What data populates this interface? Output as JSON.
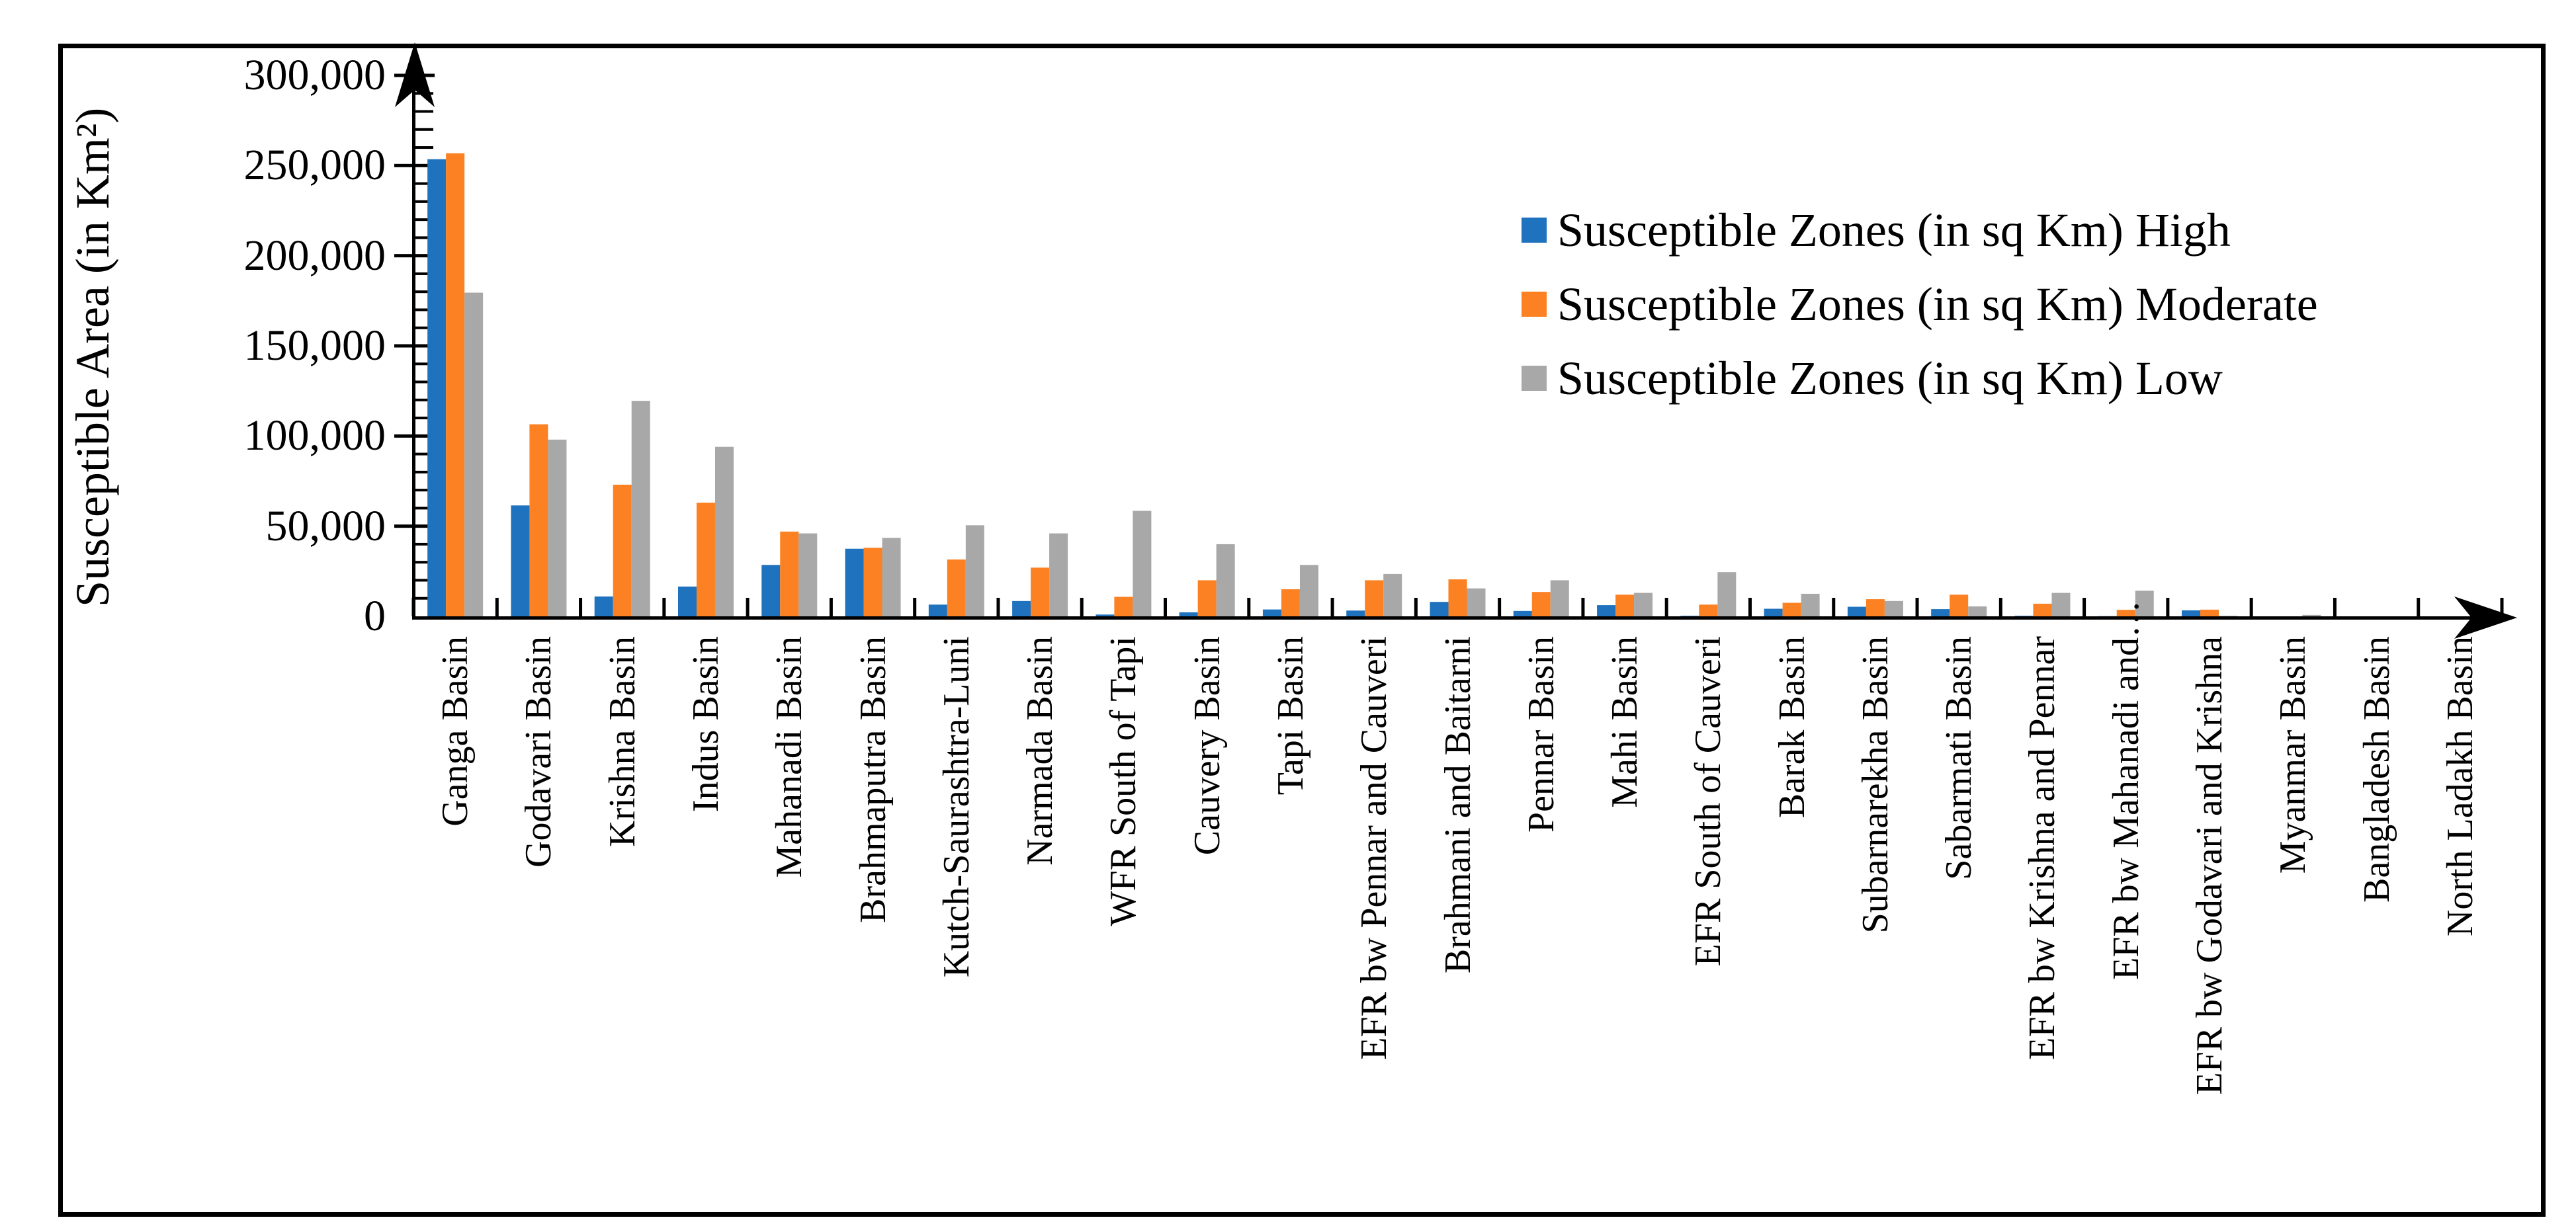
{
  "chart_data": {
    "type": "bar",
    "title": "",
    "ylabel": "Susceptible Area (in Km²)",
    "xlabel": "",
    "ylim": [
      0,
      300000
    ],
    "ytick_major_step": 50000,
    "ytick_minor_step": 10000,
    "ytick_labels": [
      "0",
      "50,000",
      "100,000",
      "150,000",
      "200,000",
      "250,000",
      "300,000"
    ],
    "grid": false,
    "legend_position": "upper-right-inside",
    "axis_color": "#000000",
    "categories": [
      "Ganga Basin",
      "Godavari Basin",
      "Krishna Basin",
      "Indus Basin",
      "Mahanadi Basin",
      "Brahmaputra Basin",
      "Kutch-Saurashtra-Luni",
      "Narmada Basin",
      "WFR South of Tapi",
      "Cauvery Basin",
      "Tapi Basin",
      "EFR bw Pennar and Cauveri",
      "Brahmani and Baitarni",
      "Pennar Basin",
      "Mahi Basin",
      "EFR South of Cauveri",
      "Barak Basin",
      "Subarnarekha Basin",
      "Sabarmati Basin",
      "EFR bw Krishna and Pennar",
      "EFR bw Mahanadi and…",
      "EFR bw Godavari and Krishna",
      "Myanmar Basin",
      "Bangladesh Basin",
      "North Ladakh Basin"
    ],
    "series": [
      {
        "name": "High",
        "legend_label": "Susceptible Zones (in sq Km) High",
        "color": "#1F72BE",
        "values": [
          253500,
          61500,
          11000,
          16500,
          28500,
          37500,
          6500,
          8500,
          1000,
          2200,
          3800,
          3200,
          8000,
          3000,
          6200,
          300,
          4200,
          5300,
          4000,
          300,
          100,
          3300,
          0,
          0,
          0
        ]
      },
      {
        "name": "Moderate",
        "legend_label": "Susceptible Zones (in sq Km) Moderate",
        "color": "#FB8122",
        "values": [
          256800,
          106500,
          73000,
          63000,
          47000,
          38000,
          31500,
          27000,
          10800,
          20000,
          15000,
          20000,
          20500,
          13500,
          12000,
          6500,
          7500,
          9500,
          12000,
          7000,
          3600,
          3700,
          0,
          0,
          0
        ]
      },
      {
        "name": "Low",
        "legend_label": "Susceptible Zones (in sq Km) Low",
        "color": "#A8A8A8",
        "values": [
          179500,
          98000,
          119500,
          94000,
          46000,
          43500,
          50500,
          46000,
          58500,
          40000,
          28500,
          23500,
          15500,
          20000,
          13000,
          24500,
          12500,
          8500,
          5500,
          13000,
          14200,
          300,
          800,
          0,
          0
        ]
      }
    ]
  }
}
